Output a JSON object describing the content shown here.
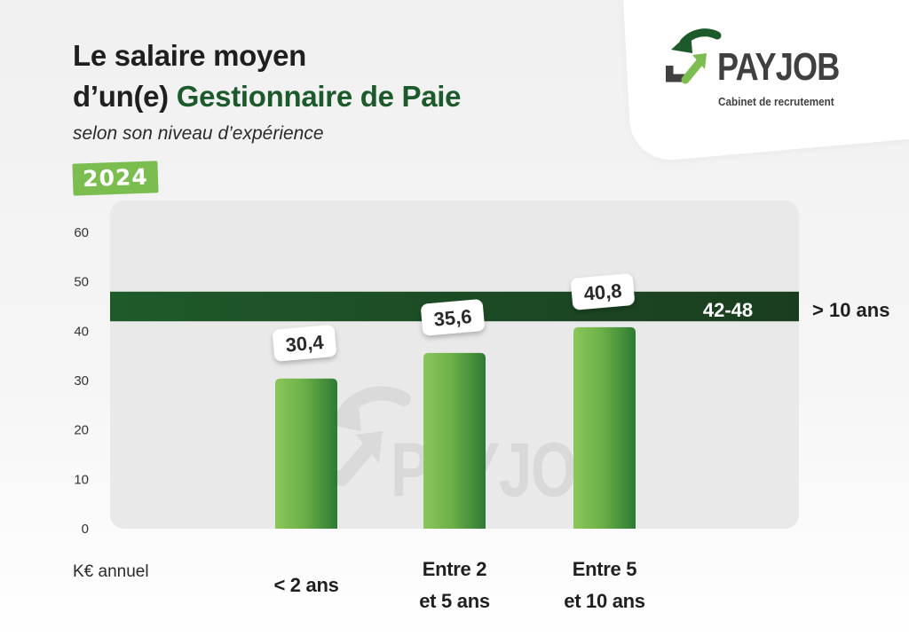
{
  "header": {
    "title_line1": "Le salaire moyen",
    "title_line2_prefix": "d’un(e)",
    "title_line2_accent": "Gestionnaire de Paie",
    "subtitle": "selon son niveau d’expérience",
    "year": "2024"
  },
  "brand": {
    "name_pay": "PAY",
    "name_job": "JOB",
    "tagline": "Cabinet de recrutement",
    "icon": "recycle-arrows-logo-icon",
    "colors": {
      "green": "#1c5a2c",
      "grey": "#404040"
    }
  },
  "watermark": {
    "text": "PAYJOB"
  },
  "chart_data": {
    "type": "bar",
    "unit_label": "K€ annuel",
    "categories": [
      "< 2 ans",
      "Entre 2 et 5 ans",
      "Entre 5 et 10 ans"
    ],
    "category_lines": [
      [
        "< 2 ans"
      ],
      [
        "Entre 2",
        "et 5 ans"
      ],
      [
        "Entre 5",
        "et 10 ans"
      ]
    ],
    "values": [
      30.4,
      35.6,
      40.8
    ],
    "value_labels": [
      "30,4",
      "35,6",
      "40,8"
    ],
    "ylim": [
      0,
      60
    ],
    "yticks": [
      0,
      10,
      20,
      30,
      40,
      50,
      60
    ],
    "grid": false,
    "range_band": {
      "category": "> 10 ans",
      "range": [
        42,
        48
      ],
      "label": "42-48"
    },
    "colors": {
      "bar_light": "#7cbd4f",
      "bar_dark": "#2e7a34",
      "band_dark": "#1a3d1f",
      "band_mid": "#1f5a2a",
      "panel": "#e9e9e9"
    }
  }
}
